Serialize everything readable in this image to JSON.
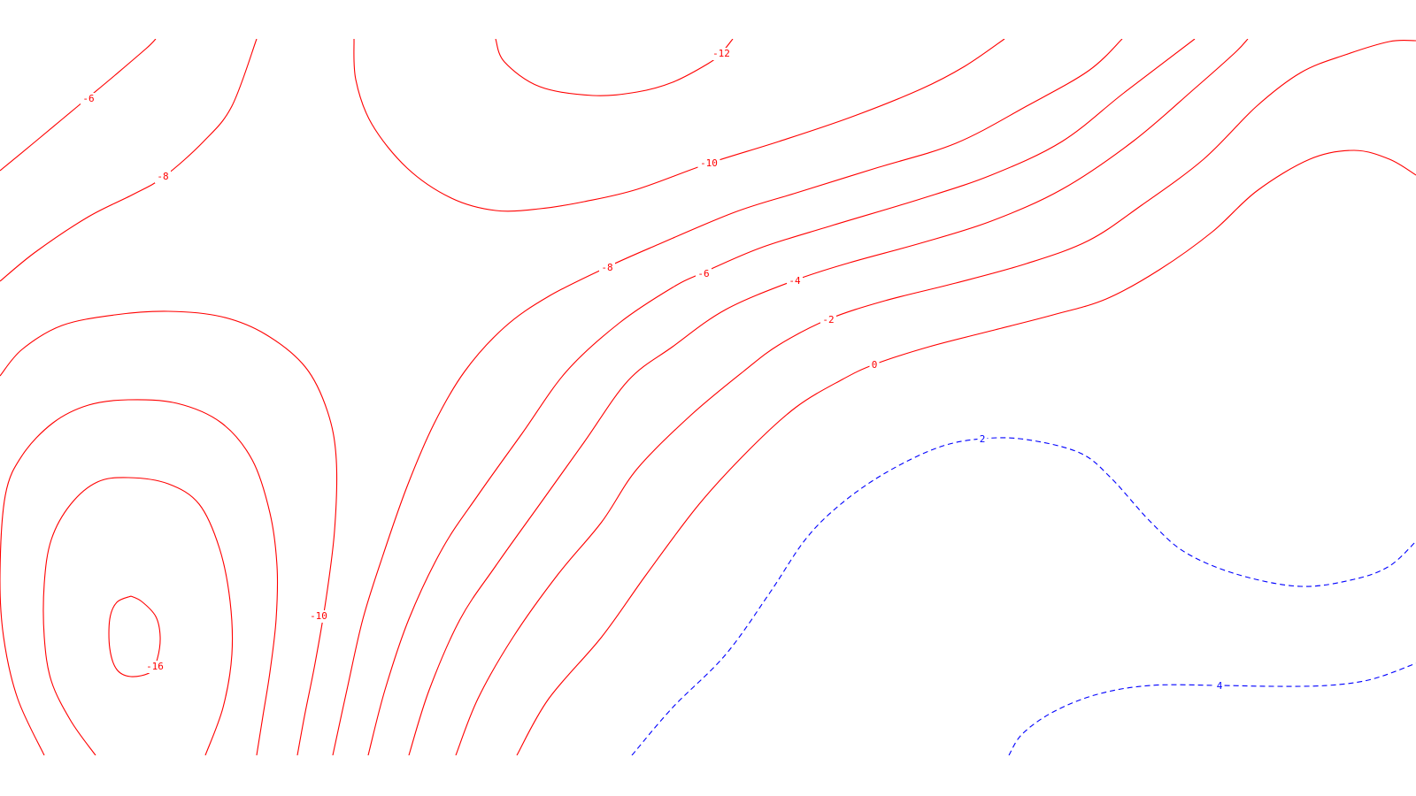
{
  "chart_data": {
    "type": "contour",
    "title": "",
    "xlabel": "",
    "ylabel": "",
    "grid": false,
    "legend": "none",
    "colors": {
      "positive": "#ff0000",
      "negative": "#0000ff"
    },
    "levels": [
      {
        "value": -16,
        "label": "-16",
        "style": "solid",
        "color": "#ff0000"
      },
      {
        "value": -14,
        "label": "",
        "style": "solid",
        "color": "#ff0000"
      },
      {
        "value": -12,
        "label": "-12",
        "style": "solid",
        "color": "#ff0000"
      },
      {
        "value": -10,
        "label": "-10",
        "style": "solid",
        "color": "#ff0000"
      },
      {
        "value": -8,
        "label": "-8",
        "style": "solid",
        "color": "#ff0000"
      },
      {
        "value": -6,
        "label": "-6",
        "style": "solid",
        "color": "#ff0000"
      },
      {
        "value": -4,
        "label": "-4",
        "style": "solid",
        "color": "#ff0000"
      },
      {
        "value": -2,
        "label": "-2",
        "style": "solid",
        "color": "#ff0000"
      },
      {
        "value": 0,
        "label": "0",
        "style": "solid",
        "color": "#ff0000"
      },
      {
        "value": 2,
        "label": "2",
        "style": "dashed",
        "color": "#0000ff"
      },
      {
        "value": 4,
        "label": "4",
        "style": "dashed",
        "color": "#0000ff"
      }
    ]
  }
}
